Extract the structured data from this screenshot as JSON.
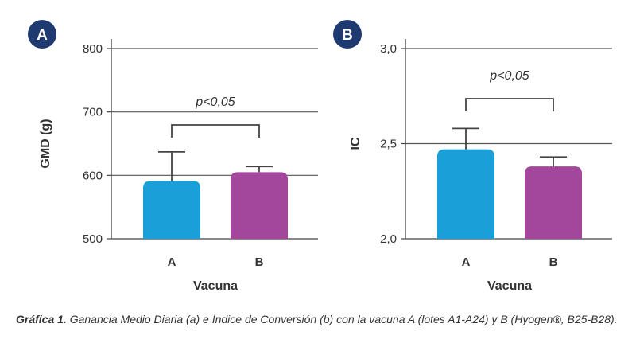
{
  "caption": {
    "lead": "Gráfica 1.",
    "text": " Ganancia Medio Diaria (a) e Índice de Conversión (b) con la vacuna A (lotes A1-A24) y B (Hyogen®, B25-B28)."
  },
  "colors": {
    "A": "#1a9fd8",
    "B": "#a2479b",
    "badge": "#1f3a70",
    "axis": "#444444",
    "grid": "#555555"
  },
  "chart_data": [
    {
      "type": "bar",
      "panel_label": "A",
      "categories": [
        "A",
        "B"
      ],
      "values": [
        591,
        605
      ],
      "errors": [
        46,
        9
      ],
      "xlabel": "Vacuna",
      "ylabel": "GMD (g)",
      "ylim": [
        500,
        800
      ],
      "yticks": [
        "500",
        "600",
        "700",
        "800"
      ],
      "ytick_values": [
        500,
        600,
        700,
        800
      ],
      "grid": true,
      "annotation": "p<0,05"
    },
    {
      "type": "bar",
      "panel_label": "B",
      "categories": [
        "A",
        "B"
      ],
      "values": [
        2.47,
        2.38
      ],
      "errors": [
        0.11,
        0.05
      ],
      "xlabel": "Vacuna",
      "ylabel": "IC",
      "ylim": [
        2.0,
        3.0
      ],
      "yticks": [
        "2,0",
        "2,5",
        "3,0"
      ],
      "ytick_values": [
        2.0,
        2.5,
        3.0
      ],
      "grid": true,
      "annotation": "p<0,05"
    }
  ]
}
